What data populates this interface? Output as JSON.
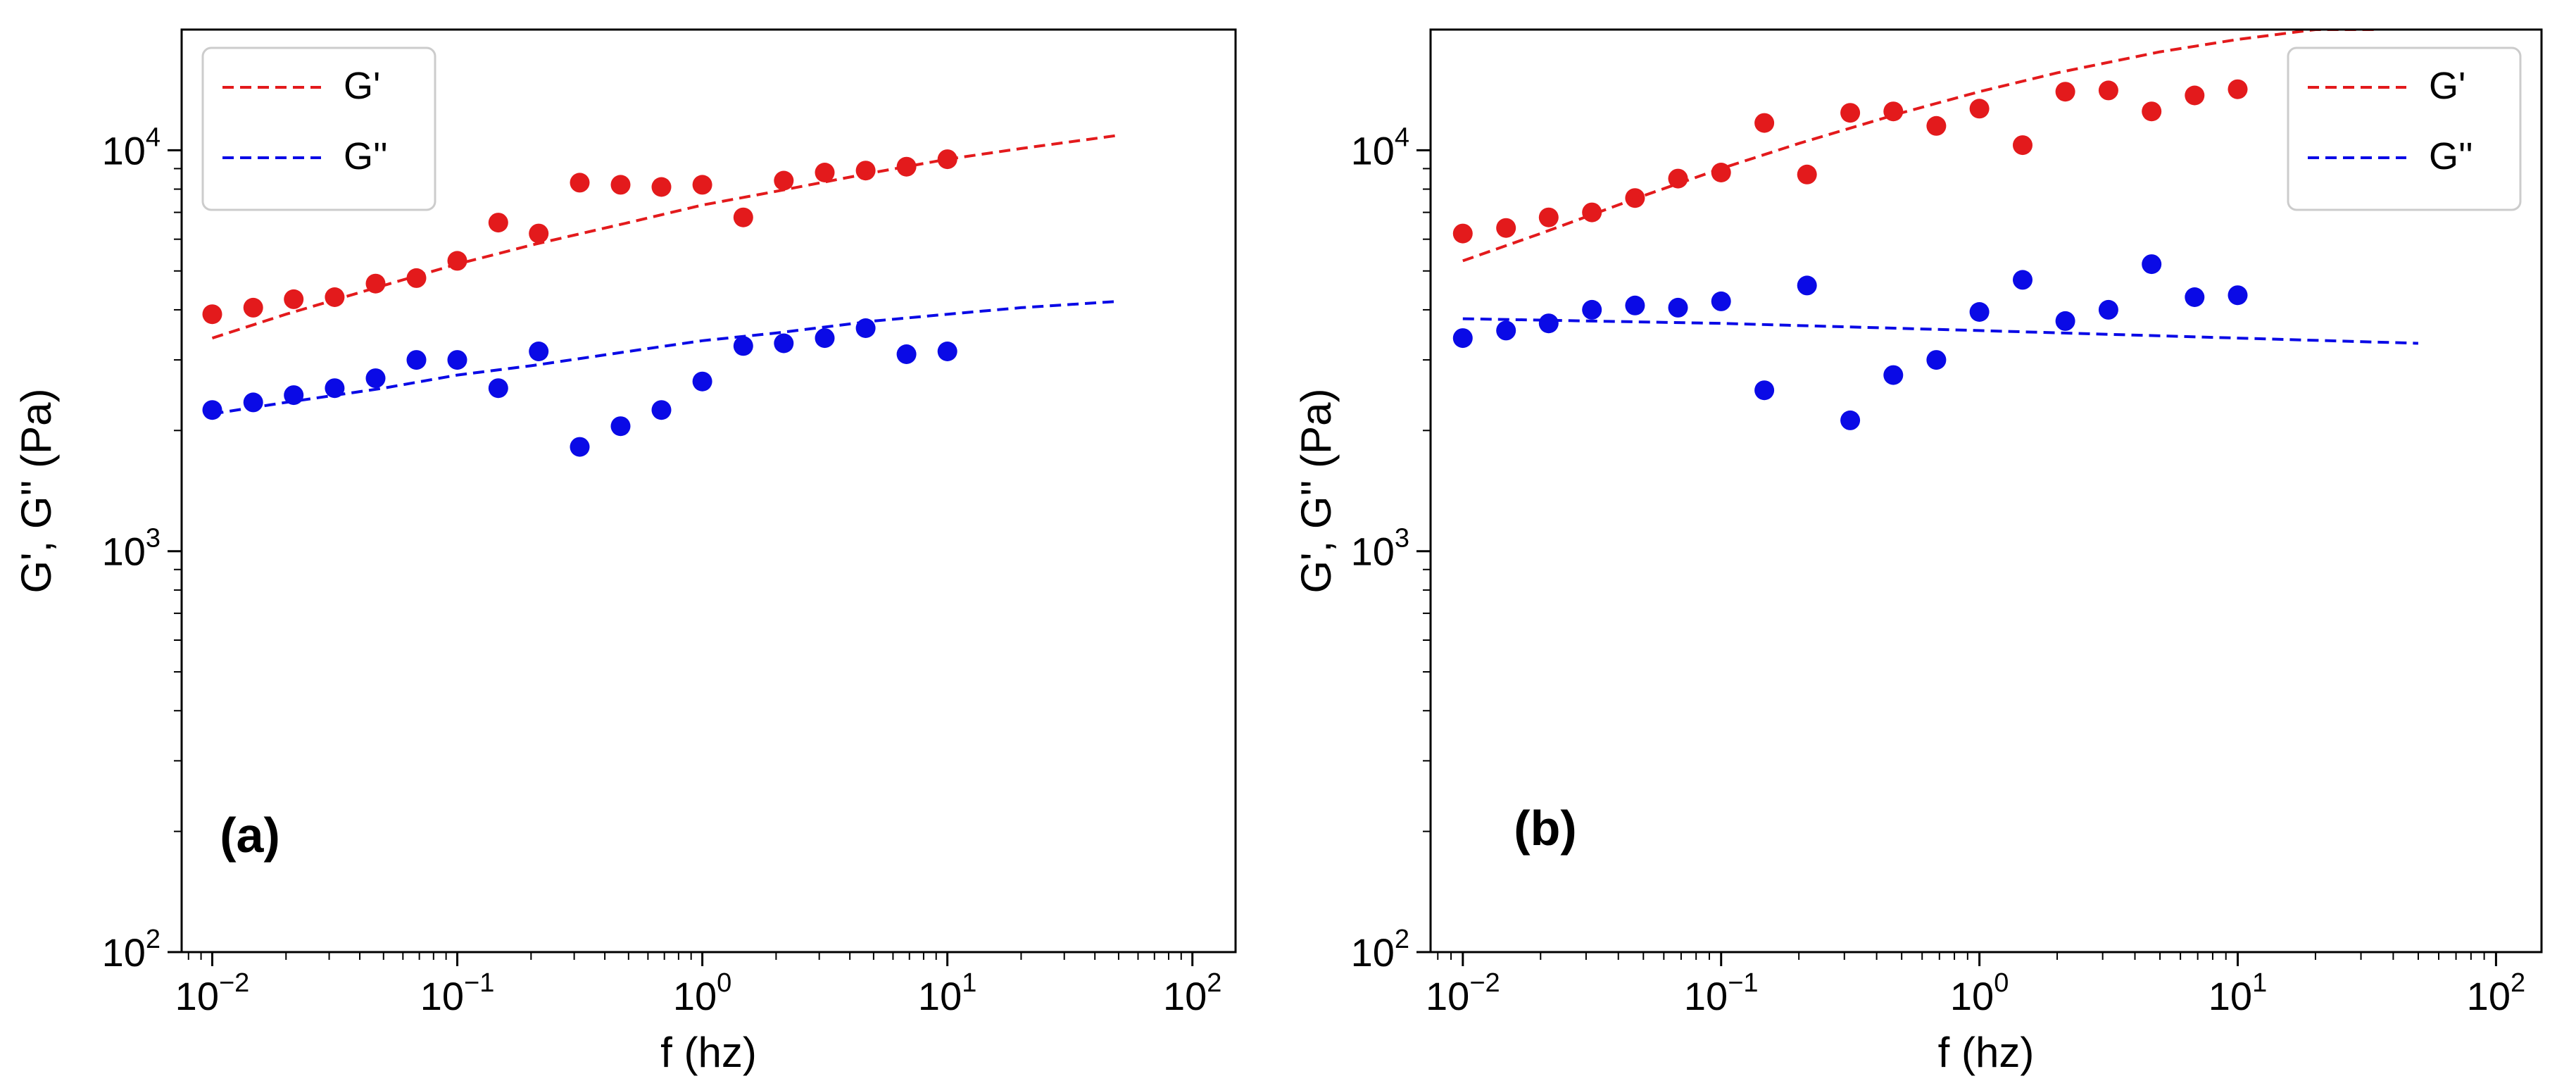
{
  "colors": {
    "gprime": "#e31a1c",
    "gdouble": "#0a0ae6"
  },
  "chart_data": [
    {
      "type": "scatter",
      "panel_label": "(a)",
      "xlabel": "f (hz)",
      "ylabel": "G', G'' (Pa)",
      "xscale": "log",
      "yscale": "log",
      "xlim": [
        0.0075,
        150
      ],
      "ylim": [
        100,
        20000
      ],
      "x_ticks": [
        {
          "base": "10",
          "exp": "−2",
          "value": 0.01
        },
        {
          "base": "10",
          "exp": "−1",
          "value": 0.1
        },
        {
          "base": "10",
          "exp": "0",
          "value": 1
        },
        {
          "base": "10",
          "exp": "1",
          "value": 10
        },
        {
          "base": "10",
          "exp": "2",
          "value": 100
        }
      ],
      "y_ticks": [
        {
          "base": "10",
          "exp": "2",
          "value": 100
        },
        {
          "base": "10",
          "exp": "3",
          "value": 1000
        },
        {
          "base": "10",
          "exp": "4",
          "value": 10000
        }
      ],
      "legend": {
        "position": "top-left",
        "entries": [
          "G'",
          "G''"
        ]
      },
      "series": [
        {
          "name": "G'",
          "kind": "points",
          "color": "#e31a1c",
          "x": [
            0.01,
            0.0147,
            0.0215,
            0.0316,
            0.0464,
            0.0681,
            0.1,
            0.147,
            0.215,
            0.316,
            0.464,
            0.681,
            1.0,
            1.47,
            2.15,
            3.16,
            4.64,
            6.81,
            10.0
          ],
          "y": [
            3900,
            4050,
            4250,
            4300,
            4650,
            4800,
            5300,
            6600,
            6200,
            8300,
            8200,
            8100,
            8200,
            6800,
            8400,
            8800,
            8900,
            9100,
            9500
          ]
        },
        {
          "name": "G''",
          "kind": "points",
          "color": "#0a0ae6",
          "x": [
            0.01,
            0.0147,
            0.0215,
            0.0316,
            0.0464,
            0.0681,
            0.1,
            0.147,
            0.215,
            0.316,
            0.464,
            0.681,
            1.0,
            1.47,
            2.15,
            3.16,
            4.64,
            6.81,
            10.0
          ],
          "y": [
            2250,
            2350,
            2450,
            2550,
            2700,
            3000,
            3000,
            2550,
            3150,
            1820,
            2050,
            2250,
            2650,
            3250,
            3300,
            3400,
            3600,
            3100,
            3150
          ]
        },
        {
          "name": "G' fit",
          "kind": "line",
          "color": "#e31a1c",
          "x": [
            0.01,
            0.02,
            0.05,
            0.1,
            0.2,
            0.5,
            1,
            2,
            5,
            10,
            20,
            50
          ],
          "y": [
            3400,
            3900,
            4600,
            5200,
            5800,
            6600,
            7300,
            7900,
            8800,
            9500,
            10100,
            10900
          ]
        },
        {
          "name": "G'' fit",
          "kind": "line",
          "color": "#0a0ae6",
          "x": [
            0.01,
            0.02,
            0.05,
            0.1,
            0.2,
            0.5,
            1,
            2,
            5,
            10,
            20,
            50
          ],
          "y": [
            2200,
            2350,
            2550,
            2750,
            2900,
            3150,
            3350,
            3500,
            3750,
            3900,
            4050,
            4200
          ]
        }
      ]
    },
    {
      "type": "scatter",
      "panel_label": "(b)",
      "xlabel": "f (hz)",
      "ylabel": "G', G'' (Pa)",
      "xscale": "log",
      "yscale": "log",
      "xlim": [
        0.0075,
        150
      ],
      "ylim": [
        100,
        20000
      ],
      "x_ticks": [
        {
          "base": "10",
          "exp": "−2",
          "value": 0.01
        },
        {
          "base": "10",
          "exp": "−1",
          "value": 0.1
        },
        {
          "base": "10",
          "exp": "0",
          "value": 1
        },
        {
          "base": "10",
          "exp": "1",
          "value": 10
        },
        {
          "base": "10",
          "exp": "2",
          "value": 100
        }
      ],
      "y_ticks": [
        {
          "base": "10",
          "exp": "2",
          "value": 100
        },
        {
          "base": "10",
          "exp": "3",
          "value": 1000
        },
        {
          "base": "10",
          "exp": "4",
          "value": 10000
        }
      ],
      "legend": {
        "position": "top-right",
        "entries": [
          "G'",
          "G''"
        ]
      },
      "series": [
        {
          "name": "G'",
          "kind": "points",
          "color": "#e31a1c",
          "x": [
            0.01,
            0.0147,
            0.0215,
            0.0316,
            0.0464,
            0.0681,
            0.1,
            0.147,
            0.215,
            0.316,
            0.464,
            0.681,
            1.0,
            1.47,
            2.15,
            3.16,
            4.64,
            6.81,
            10.0
          ],
          "y": [
            6200,
            6400,
            6800,
            7000,
            7600,
            8500,
            8800,
            11700,
            8700,
            12400,
            12500,
            11500,
            12700,
            10300,
            14000,
            14100,
            12500,
            13700,
            14200
          ]
        },
        {
          "name": "G''",
          "kind": "points",
          "color": "#0a0ae6",
          "x": [
            0.01,
            0.0147,
            0.0215,
            0.0316,
            0.0464,
            0.0681,
            0.1,
            0.147,
            0.215,
            0.316,
            0.464,
            0.681,
            1.0,
            1.47,
            2.15,
            3.16,
            4.64,
            6.81,
            10.0
          ],
          "y": [
            3400,
            3550,
            3700,
            4000,
            4100,
            4050,
            4200,
            2520,
            4600,
            2120,
            2750,
            3000,
            3950,
            4750,
            3750,
            4000,
            5200,
            4300,
            4350
          ]
        },
        {
          "name": "G' fit",
          "kind": "line",
          "color": "#e31a1c",
          "x": [
            0.01,
            0.02,
            0.05,
            0.1,
            0.2,
            0.5,
            1,
            2,
            5,
            10,
            20,
            35
          ],
          "y": [
            5300,
            6200,
            7700,
            9000,
            10400,
            12400,
            14000,
            15600,
            17600,
            18900,
            20000,
            20000
          ]
        },
        {
          "name": "G'' fit",
          "kind": "line",
          "color": "#0a0ae6",
          "x": [
            0.01,
            0.1,
            1,
            10,
            50
          ],
          "y": [
            3800,
            3700,
            3550,
            3400,
            3300
          ]
        }
      ]
    }
  ]
}
